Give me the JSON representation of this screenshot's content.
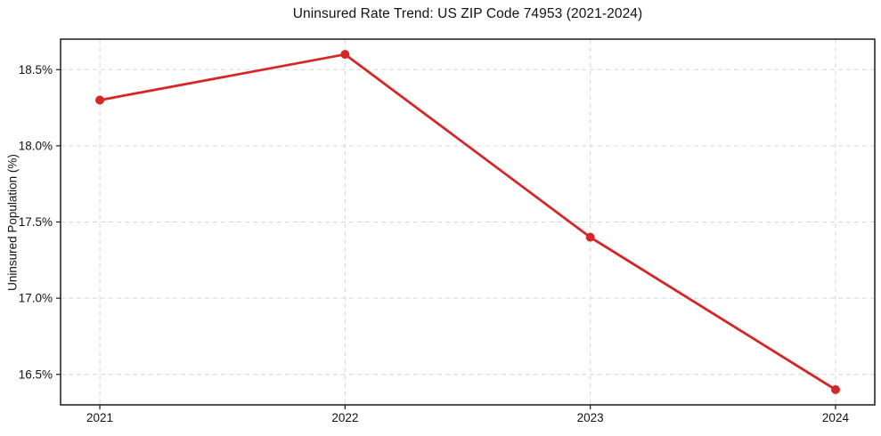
{
  "chart_data": {
    "type": "line",
    "title": "Uninsured Rate Trend: US ZIP Code 74953 (2021-2024)",
    "xlabel": "",
    "ylabel": "Uninsured Population (%)",
    "x": [
      2021,
      2022,
      2023,
      2024
    ],
    "values": [
      18.3,
      18.6,
      17.4,
      16.4
    ],
    "xticks": [
      {
        "value": 2021,
        "label": "2021"
      },
      {
        "value": 2022,
        "label": "2022"
      },
      {
        "value": 2023,
        "label": "2023"
      },
      {
        "value": 2024,
        "label": "2024"
      }
    ],
    "yticks": [
      {
        "value": 16.5,
        "label": "16.5%"
      },
      {
        "value": 17.0,
        "label": "17.0%"
      },
      {
        "value": 17.5,
        "label": "17.5%"
      },
      {
        "value": 18.0,
        "label": "18.0%"
      },
      {
        "value": 18.5,
        "label": "18.5%"
      }
    ],
    "xlim": [
      2020.84,
      2024.16
    ],
    "ylim": [
      16.3,
      18.7
    ],
    "grid": true,
    "grid_style": "dashed",
    "legend": "none",
    "line_color": "#d62728",
    "marker": "circle",
    "grid_color": "#d6d6d6",
    "axis_color": "#1a1a1a",
    "text_color": "#121212",
    "background_color": "#ffffff"
  }
}
